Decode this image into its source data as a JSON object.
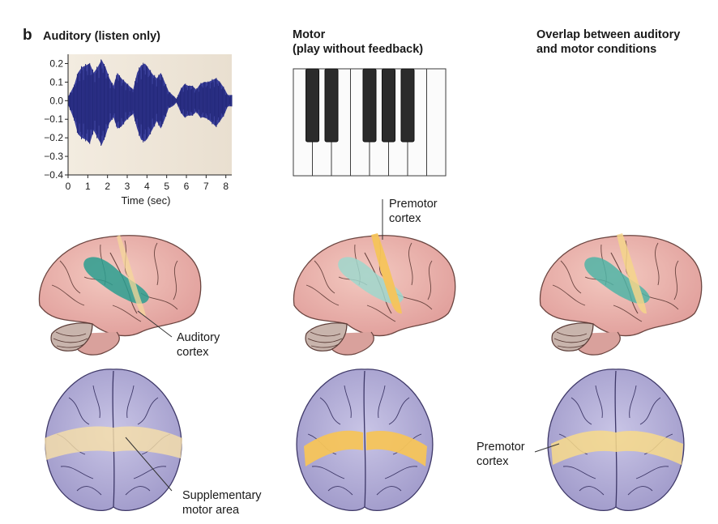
{
  "panel_letter": "b",
  "columns": [
    {
      "title_line1": "Auditory (listen only)",
      "title_line2": ""
    },
    {
      "title_line1": "Motor",
      "title_line2": "(play without feedback)"
    },
    {
      "title_line1": "Overlap between auditory",
      "title_line2": "and motor conditions"
    }
  ],
  "labels": {
    "premotor_cortex_line1": "Premotor",
    "premotor_cortex_line2": "cortex",
    "auditory_cortex_line1": "Auditory",
    "auditory_cortex_line2": "cortex",
    "sma_line1": "Supplementary",
    "sma_line2": "motor area",
    "premotor_right_line1": "Premotor",
    "premotor_right_line2": "cortex"
  },
  "colors": {
    "waveform": "#3a3f9a",
    "waveform_bg": "#efe6d8",
    "brain_lateral": "#eeb3ad",
    "brain_top": "#b9b4dc",
    "auditory_region": "#2a9e8f",
    "motor_region": "#f5cf78"
  },
  "chart_data": {
    "type": "line",
    "title": "",
    "xlabel": "Time (sec)",
    "ylabel": "",
    "xlim": [
      0,
      8.3
    ],
    "ylim": [
      -0.4,
      0.25
    ],
    "x_ticks": [
      "0",
      "1",
      "2",
      "3",
      "4",
      "5",
      "6",
      "7",
      "8"
    ],
    "y_ticks": [
      "0.2",
      "0.1",
      "0.0",
      "−0.1",
      "−0.2",
      "−0.3",
      "−0.4"
    ],
    "y_tick_values": [
      0.2,
      0.1,
      0.0,
      -0.1,
      -0.2,
      -0.3,
      -0.4
    ],
    "series": [
      {
        "x": [
          0.0,
          0.3,
          0.5,
          0.7,
          0.9,
          1.1,
          1.3,
          1.5,
          1.7,
          1.9,
          2.1,
          2.3,
          2.5,
          2.7,
          2.9,
          3.1,
          3.3,
          3.5,
          3.7,
          3.9,
          4.1,
          4.3,
          4.5,
          4.7,
          4.9,
          5.1,
          5.3,
          5.5,
          5.7,
          5.9,
          6.1,
          6.3,
          6.5,
          6.7,
          6.9,
          7.1,
          7.3,
          7.5,
          7.7,
          7.9,
          8.1,
          8.3
        ],
        "envelope_upper": [
          0.02,
          0.08,
          0.15,
          0.18,
          0.19,
          0.2,
          0.15,
          0.18,
          0.22,
          0.18,
          0.12,
          0.08,
          0.15,
          0.12,
          0.1,
          0.08,
          0.06,
          0.15,
          0.19,
          0.2,
          0.17,
          0.14,
          0.12,
          0.15,
          0.1,
          0.05,
          0.03,
          0.01,
          0.06,
          0.09,
          0.08,
          0.08,
          0.06,
          0.09,
          0.1,
          0.1,
          0.11,
          0.12,
          0.1,
          0.07,
          0.03,
          0.03
        ],
        "envelope_lower": [
          -0.02,
          -0.1,
          -0.18,
          -0.2,
          -0.21,
          -0.23,
          -0.16,
          -0.2,
          -0.24,
          -0.19,
          -0.12,
          -0.09,
          -0.15,
          -0.14,
          -0.11,
          -0.09,
          -0.07,
          -0.15,
          -0.21,
          -0.22,
          -0.19,
          -0.15,
          -0.11,
          -0.15,
          -0.1,
          -0.04,
          -0.03,
          -0.01,
          -0.06,
          -0.09,
          -0.08,
          -0.08,
          -0.06,
          -0.09,
          -0.09,
          -0.1,
          -0.12,
          -0.14,
          -0.11,
          -0.08,
          -0.03,
          -0.03
        ]
      }
    ]
  }
}
